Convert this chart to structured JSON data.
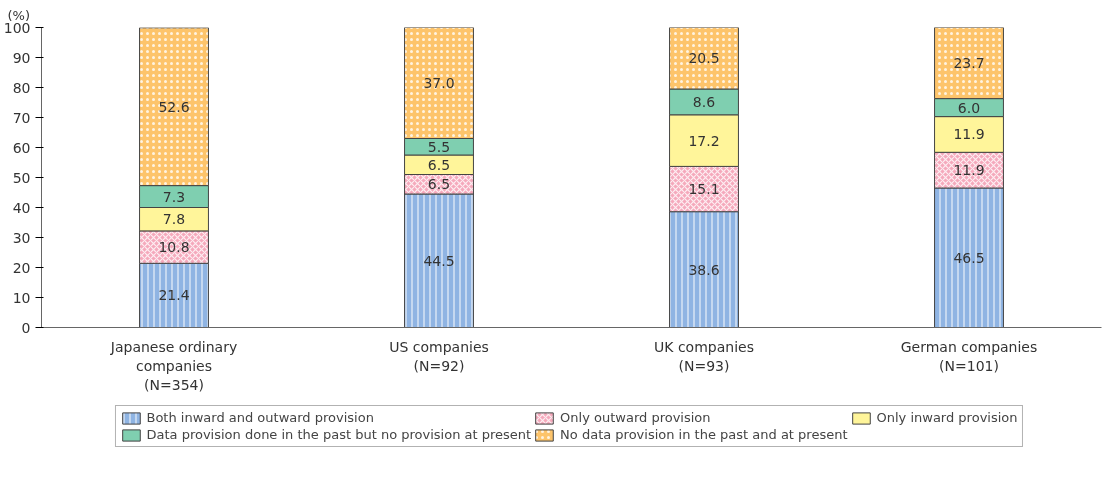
{
  "chart_data": {
    "type": "bar",
    "stacked": true,
    "ylabel": "(%)",
    "categories": [
      "Japanese ordinary\ncompanies\n(N=354)",
      "US companies\n(N=92)",
      "UK companies\n(N=93)",
      "German companies\n(N=101)"
    ],
    "series": [
      {
        "name": "Both inward and outward provision",
        "color": "#8fb4e3",
        "values": [
          21.4,
          44.5,
          38.6,
          46.5
        ],
        "value_labels": [
          "21.4",
          "44.5",
          "38.6",
          "46.5"
        ]
      },
      {
        "name": "Only outward provision",
        "color": "#f5a9bc",
        "values": [
          10.8,
          6.5,
          15.1,
          11.9
        ],
        "value_labels": [
          "10.8",
          "6.5",
          "15.1",
          "11.9"
        ]
      },
      {
        "name": "Only inward provision",
        "color": "#fff59a",
        "values": [
          7.8,
          6.5,
          17.2,
          11.9
        ],
        "value_labels": [
          "7.8",
          "6.5",
          "17.2",
          "11.9"
        ]
      },
      {
        "name": "Data provision done in the past but no provision at present",
        "color": "#7fcfb0",
        "values": [
          7.3,
          5.5,
          8.6,
          6.0
        ],
        "value_labels": [
          "7.3",
          "5.5",
          "8.6",
          "6.0"
        ]
      },
      {
        "name": "No data provision in the past and at present",
        "color": "#fdc46b",
        "values": [
          52.6,
          37.0,
          20.5,
          23.7
        ],
        "value_labels": [
          "52.6",
          "37.0",
          "20.5",
          "23.7"
        ]
      }
    ],
    "ylim": [
      0,
      100
    ],
    "yticks": [
      0,
      10,
      20,
      30,
      40,
      50,
      60,
      70,
      80,
      90,
      100
    ],
    "grid": false,
    "legend": "bottom"
  }
}
